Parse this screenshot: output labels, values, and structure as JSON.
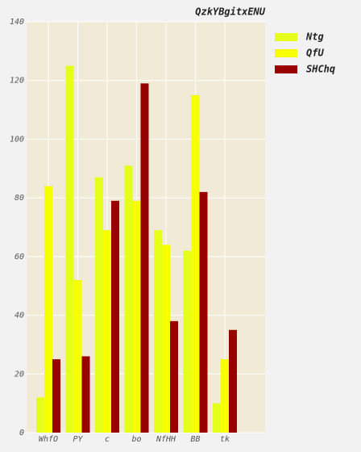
{
  "chart_data": {
    "type": "bar",
    "title": "QzkYBgitxENU",
    "categories": [
      "WhfO",
      "PY",
      "c",
      "bo",
      "NfHH",
      "BB",
      "tk"
    ],
    "series": [
      {
        "name": "Ntg",
        "color": "#e5ff1a",
        "values": [
          12,
          125,
          87,
          91,
          69,
          62,
          10
        ]
      },
      {
        "name": "QfU",
        "color": "#f7ff00",
        "values": [
          84,
          52,
          69,
          79,
          64,
          115,
          25
        ]
      },
      {
        "name": "SHChq",
        "color": "#990000",
        "values": [
          25,
          26,
          79,
          119,
          38,
          82,
          35
        ]
      }
    ],
    "ylim": [
      0,
      140
    ],
    "yticks": [
      0,
      20,
      40,
      60,
      80,
      100,
      120,
      140
    ],
    "grid": true,
    "legend": "right"
  }
}
